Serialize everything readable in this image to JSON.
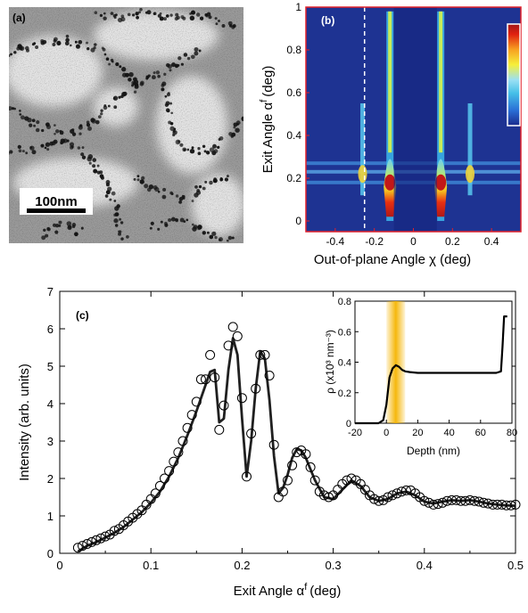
{
  "panel_a": {
    "label": "(a)",
    "scalebar_label": "100nm"
  },
  "panel_b": {
    "label": "(b)",
    "ylabel_main": "Exit Angle α",
    "ylabel_sup": "f",
    "ylabel_unit": "(deg)",
    "xlabel": "Out-of-plane Angle  χ (deg)",
    "xticks": [
      "-0.4",
      "-0.2",
      "0",
      "0.2",
      "0.4"
    ],
    "yticks": [
      "0",
      "0.2",
      "0.4",
      "0.6",
      "0.8",
      "1"
    ],
    "colormap": [
      "#1a2a8c",
      "#2a6fd6",
      "#46c0e8",
      "#9be0f4",
      "#f6ef3a",
      "#f7a020",
      "#e02010",
      "#a01818"
    ],
    "dashed_line_chi": -0.25
  },
  "panel_c": {
    "label": "(c)",
    "ylabel": "Intensity (arb. units)",
    "xlabel_main": "Exit Angle α",
    "xlabel_sup": "f",
    "xlabel_unit": "(deg)",
    "xticks": [
      "0",
      "0.1",
      "0.2",
      "0.3",
      "0.4",
      "0.5"
    ],
    "yticks": [
      "0",
      "1",
      "2",
      "3",
      "4",
      "5",
      "6",
      "7"
    ],
    "inset": {
      "ylabel": "ρ (x10³ nm⁻³)",
      "xlabel": "Depth (nm)",
      "xticks": [
        "-20",
        "0",
        "20",
        "40",
        "60",
        "80"
      ],
      "yticks": [
        "0",
        "0.2",
        "0.4",
        "0.6",
        "0.8"
      ]
    }
  },
  "chart_data": [
    {
      "type": "heatmap",
      "panel": "b",
      "xlabel": "Out-of-plane Angle χ (deg)",
      "ylabel": "Exit Angle α f (deg)",
      "xlim": [
        -0.55,
        0.55
      ],
      "ylim": [
        -0.05,
        1.0
      ],
      "xticks": [
        -0.4,
        -0.2,
        0,
        0.2,
        0.4
      ],
      "yticks": [
        0,
        0.2,
        0.4,
        0.6,
        0.8,
        1
      ],
      "bright_rods_chi": [
        -0.12,
        0.14
      ],
      "weak_rods_chi": [
        -0.26,
        0.29
      ],
      "yoneda_alpha": [
        0.18,
        0.23,
        0.27
      ],
      "reference_line_chi": -0.25,
      "colorbar": "vertical, top-right"
    },
    {
      "type": "scatter",
      "panel": "c",
      "name_points": "",
      "xlim": [
        0,
        0.5
      ],
      "ylim": [
        0,
        7
      ],
      "x": [
        0.02,
        0.025,
        0.03,
        0.035,
        0.04,
        0.045,
        0.05,
        0.055,
        0.06,
        0.065,
        0.07,
        0.075,
        0.08,
        0.085,
        0.09,
        0.095,
        0.1,
        0.105,
        0.11,
        0.115,
        0.12,
        0.125,
        0.13,
        0.135,
        0.14,
        0.145,
        0.15,
        0.155,
        0.16,
        0.165,
        0.17,
        0.175,
        0.18,
        0.185,
        0.19,
        0.195,
        0.2,
        0.205,
        0.21,
        0.215,
        0.22,
        0.225,
        0.23,
        0.235,
        0.24,
        0.245,
        0.25,
        0.255,
        0.26,
        0.265,
        0.27,
        0.275,
        0.28,
        0.285,
        0.29,
        0.295,
        0.3,
        0.305,
        0.31,
        0.315,
        0.32,
        0.325,
        0.33,
        0.335,
        0.34,
        0.345,
        0.35,
        0.355,
        0.36,
        0.365,
        0.37,
        0.375,
        0.38,
        0.385,
        0.39,
        0.395,
        0.4,
        0.405,
        0.41,
        0.415,
        0.42,
        0.425,
        0.43,
        0.435,
        0.44,
        0.445,
        0.45,
        0.455,
        0.46,
        0.465,
        0.47,
        0.475,
        0.48,
        0.485,
        0.49,
        0.495,
        0.5
      ],
      "y": [
        0.15,
        0.2,
        0.25,
        0.3,
        0.35,
        0.4,
        0.45,
        0.5,
        0.6,
        0.65,
        0.75,
        0.85,
        0.95,
        1.05,
        1.15,
        1.3,
        1.45,
        1.6,
        1.8,
        2.0,
        2.2,
        2.45,
        2.7,
        3.0,
        3.35,
        3.7,
        4.05,
        4.65,
        4.65,
        5.3,
        4.7,
        3.3,
        3.95,
        5.55,
        6.05,
        5.8,
        4.15,
        2.05,
        3.2,
        4.4,
        5.3,
        5.3,
        4.75,
        2.9,
        1.5,
        1.65,
        1.95,
        2.35,
        2.7,
        2.75,
        2.65,
        2.3,
        1.95,
        1.65,
        1.55,
        1.5,
        1.55,
        1.7,
        1.85,
        1.95,
        2.0,
        1.95,
        1.85,
        1.7,
        1.55,
        1.45,
        1.4,
        1.42,
        1.5,
        1.55,
        1.6,
        1.65,
        1.68,
        1.68,
        1.6,
        1.5,
        1.4,
        1.35,
        1.3,
        1.32,
        1.35,
        1.4,
        1.42,
        1.42,
        1.4,
        1.4,
        1.42,
        1.4,
        1.38,
        1.35,
        1.33,
        1.3,
        1.3,
        1.3,
        1.28,
        1.28,
        1.3
      ]
    },
    {
      "type": "line",
      "panel": "c",
      "name": "",
      "x": [
        0.02,
        0.03,
        0.04,
        0.05,
        0.06,
        0.07,
        0.08,
        0.09,
        0.1,
        0.11,
        0.12,
        0.13,
        0.14,
        0.15,
        0.16,
        0.165,
        0.17,
        0.175,
        0.18,
        0.185,
        0.19,
        0.195,
        0.2,
        0.205,
        0.21,
        0.215,
        0.22,
        0.225,
        0.23,
        0.235,
        0.24,
        0.245,
        0.25,
        0.255,
        0.26,
        0.265,
        0.27,
        0.28,
        0.29,
        0.3,
        0.31,
        0.32,
        0.33,
        0.34,
        0.35,
        0.36,
        0.37,
        0.38,
        0.39,
        0.4,
        0.41,
        0.42,
        0.43,
        0.44,
        0.45,
        0.46,
        0.47,
        0.48,
        0.49,
        0.5
      ],
      "y": [
        0.05,
        0.2,
        0.3,
        0.42,
        0.55,
        0.7,
        0.9,
        1.1,
        1.35,
        1.65,
        2.05,
        2.55,
        3.15,
        3.8,
        4.5,
        4.85,
        4.9,
        3.5,
        3.6,
        4.9,
        5.75,
        5.3,
        3.6,
        2.05,
        3.0,
        4.4,
        5.4,
        5.2,
        4.1,
        2.6,
        1.6,
        1.75,
        2.1,
        2.55,
        2.78,
        2.75,
        2.55,
        1.95,
        1.5,
        1.45,
        1.7,
        1.95,
        1.8,
        1.5,
        1.4,
        1.45,
        1.6,
        1.65,
        1.55,
        1.38,
        1.33,
        1.38,
        1.42,
        1.4,
        1.42,
        1.38,
        1.33,
        1.3,
        1.28,
        1.27
      ]
    },
    {
      "type": "line",
      "panel": "c-inset",
      "name": "",
      "xlim": [
        -20,
        80
      ],
      "ylim": [
        0,
        0.8
      ],
      "x": [
        -20,
        -5,
        -2,
        0,
        2,
        4,
        6,
        8,
        10,
        12,
        15,
        20,
        30,
        40,
        50,
        60,
        70,
        73,
        74,
        75,
        77
      ],
      "y": [
        0.0,
        0.0,
        0.02,
        0.12,
        0.3,
        0.36,
        0.38,
        0.37,
        0.35,
        0.34,
        0.335,
        0.33,
        0.33,
        0.33,
        0.33,
        0.33,
        0.33,
        0.34,
        0.5,
        0.7,
        0.7
      ],
      "highlight_depth_range": [
        0,
        12
      ],
      "highlight_color": "#f5b400"
    }
  ]
}
